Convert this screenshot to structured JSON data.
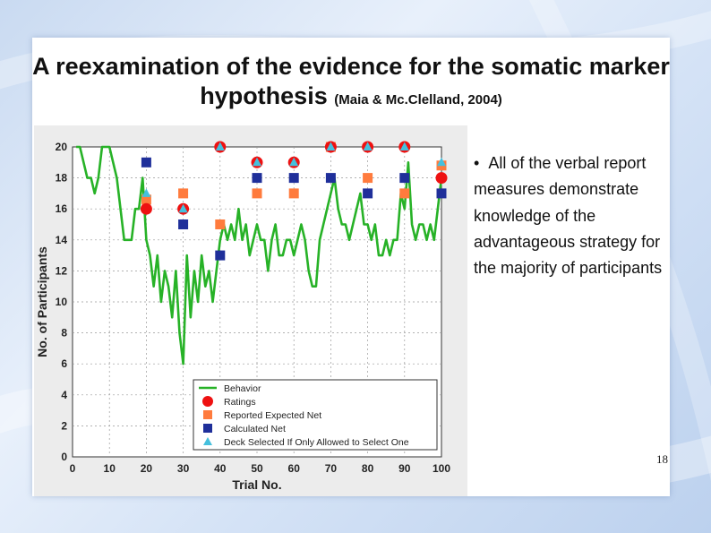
{
  "slide": {
    "title_main": "A reexamination of the evidence for the somatic marker hypothesis",
    "title_citation": "(Maia & Mc.Clelland, 2004)",
    "bullets": [
      "All of the verbal report measures demonstrate knowledge of the advantageous strategy for the majority of participants"
    ],
    "page_number": "18",
    "colors": {
      "behavior": "#27b227",
      "ratings": "#ee1111",
      "reported": "#ff7b3d",
      "calculated": "#1f2f9a",
      "deck": "#45c0dd"
    }
  },
  "chart_data": {
    "type": "line",
    "xlabel": "Trial No.",
    "ylabel": "No. of Participants",
    "xlim": [
      0,
      100
    ],
    "ylim": [
      0,
      20
    ],
    "x_ticks": [
      0,
      10,
      20,
      30,
      40,
      50,
      60,
      70,
      80,
      90,
      100
    ],
    "y_ticks": [
      0,
      2,
      4,
      6,
      8,
      10,
      12,
      14,
      16,
      18,
      20
    ],
    "legend_position": "bottom-right",
    "legend": [
      "Behavior",
      "Ratings",
      "Reported Expected Net",
      "Calculated Net",
      "Deck Selected If Only Allowed to Select One"
    ],
    "series": [
      {
        "name": "Behavior",
        "marker": "line",
        "x": [
          1,
          2,
          3,
          4,
          5,
          6,
          7,
          8,
          9,
          10,
          11,
          12,
          13,
          14,
          15,
          16,
          17,
          18,
          19,
          20,
          21,
          22,
          23,
          24,
          25,
          26,
          27,
          28,
          29,
          30,
          31,
          32,
          33,
          34,
          35,
          36,
          37,
          38,
          39,
          40,
          41,
          42,
          43,
          44,
          45,
          46,
          47,
          48,
          49,
          50,
          51,
          52,
          53,
          54,
          55,
          56,
          57,
          58,
          59,
          60,
          61,
          62,
          63,
          64,
          65,
          66,
          67,
          68,
          69,
          70,
          71,
          72,
          73,
          74,
          75,
          76,
          77,
          78,
          79,
          80,
          81,
          82,
          83,
          84,
          85,
          86,
          87,
          88,
          89,
          90,
          91,
          92,
          93,
          94,
          95,
          96,
          97,
          98,
          99,
          100
        ],
        "y": [
          20,
          20,
          19,
          18,
          18,
          17,
          18,
          20,
          20,
          20,
          19,
          18,
          16,
          14,
          14,
          14,
          16,
          16,
          18,
          14,
          13,
          11,
          13,
          10,
          12,
          11,
          9,
          12,
          8,
          6,
          13,
          9,
          12,
          10,
          13,
          11,
          12,
          10,
          12,
          14,
          15,
          14,
          15,
          14,
          16,
          14,
          15,
          13,
          14,
          15,
          14,
          14,
          12,
          14,
          15,
          13,
          13,
          14,
          14,
          13,
          14,
          15,
          14,
          12,
          11,
          11,
          14,
          15,
          16,
          17,
          18,
          16,
          15,
          15,
          14,
          15,
          16,
          17,
          15,
          15,
          14,
          15,
          13,
          13,
          14,
          13,
          14,
          14,
          17,
          16,
          19,
          15,
          14,
          15,
          15,
          14,
          15,
          14,
          16,
          18
        ]
      },
      {
        "name": "Ratings",
        "marker": "circle",
        "x": [
          20,
          30,
          40,
          50,
          60,
          70,
          80,
          90,
          100
        ],
        "y": [
          16,
          16,
          20,
          19,
          19,
          20,
          20,
          20,
          18
        ]
      },
      {
        "name": "Reported Expected Net",
        "marker": "square",
        "x": [
          20,
          30,
          40,
          50,
          60,
          70,
          80,
          90,
          100
        ],
        "y": [
          16.6,
          17,
          15,
          17,
          17,
          20,
          18,
          17,
          18.8
        ]
      },
      {
        "name": "Calculated Net",
        "marker": "square",
        "x": [
          20,
          30,
          40,
          50,
          60,
          70,
          80,
          90,
          100
        ],
        "y": [
          19,
          15,
          13,
          18,
          18,
          18,
          17,
          18,
          17
        ]
      },
      {
        "name": "Deck Selected If Only Allowed to Select One",
        "marker": "triangle",
        "x": [
          20,
          30,
          40,
          50,
          60,
          70,
          80,
          90,
          100
        ],
        "y": [
          17,
          16,
          20,
          19,
          19,
          20,
          20,
          20,
          19
        ]
      }
    ]
  }
}
